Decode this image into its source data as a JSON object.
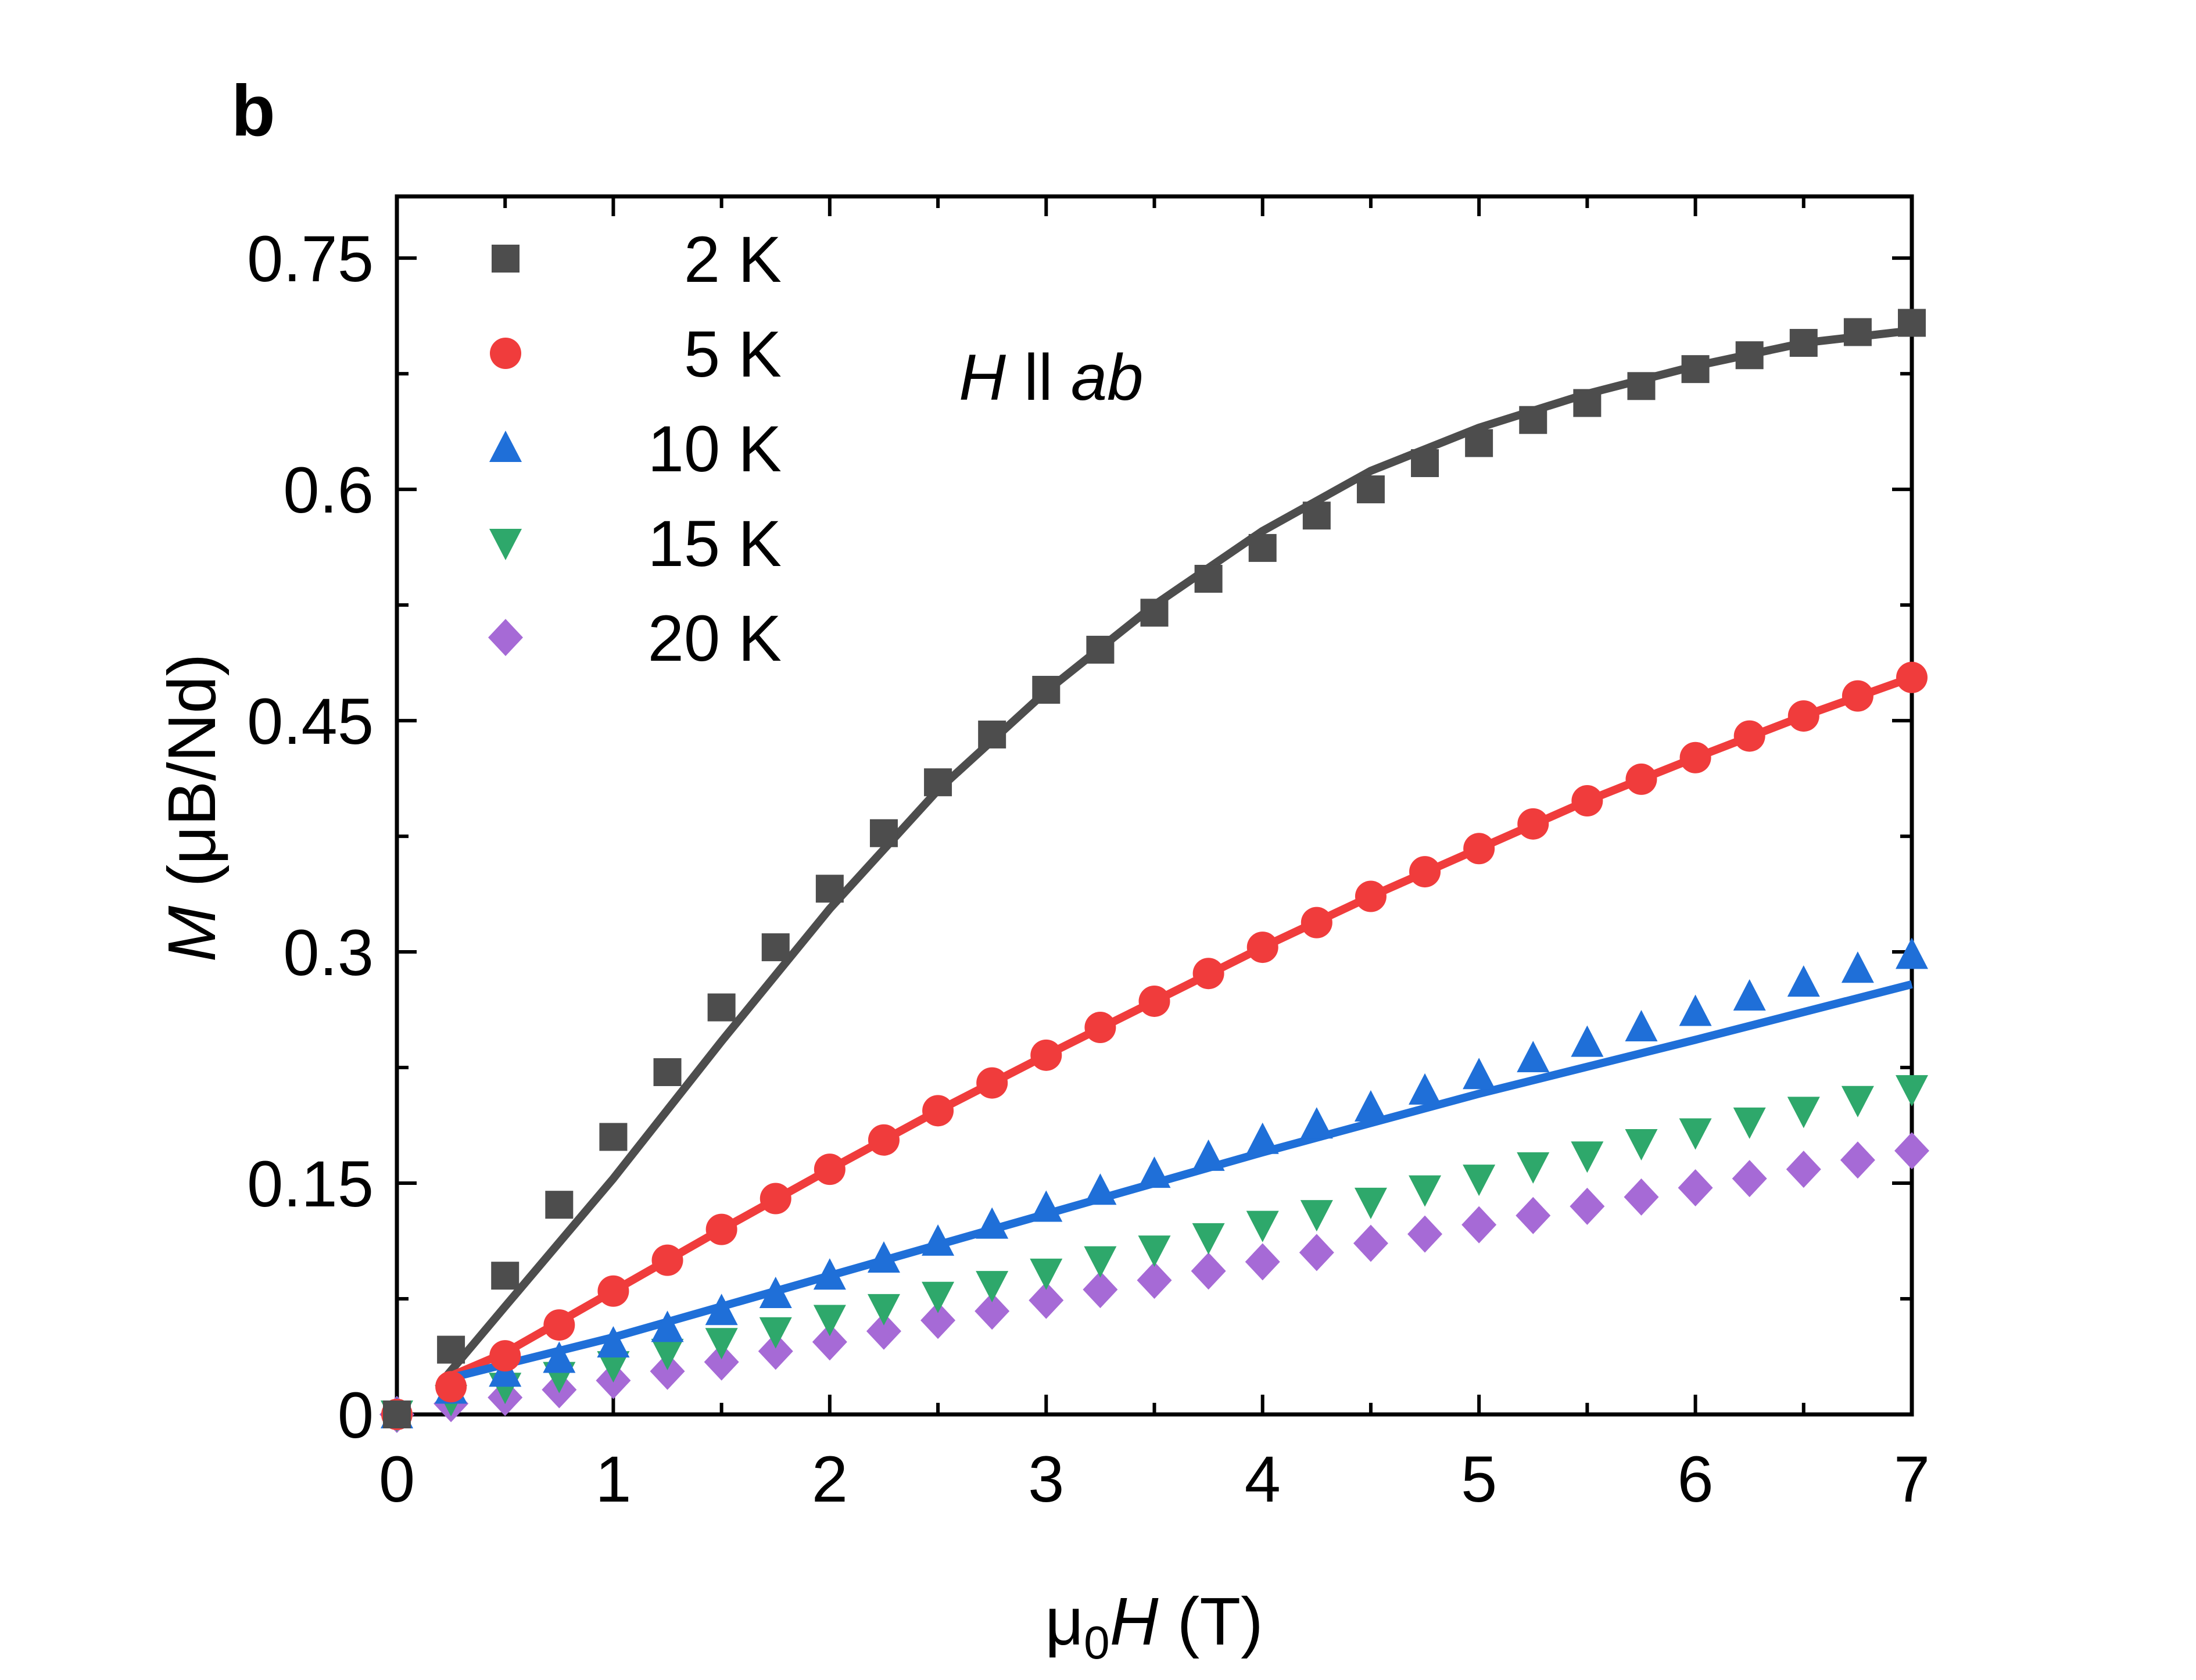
{
  "panel_label": "b",
  "annotation": {
    "prefix": "H",
    "sep": " ll ",
    "suffix": "ab"
  },
  "axes": {
    "x_title": {
      "prefix": "μ",
      "subscript": "0",
      "italic": "H",
      "suffix": " (T)"
    },
    "y_title": {
      "italic": "M",
      "suffix": " (μB/Nd)"
    }
  },
  "chart_data": {
    "type": "scatter",
    "title": "",
    "xlabel": "μ0H (T)",
    "ylabel": "M (μB/Nd)",
    "xlim": [
      0,
      7
    ],
    "ylim": [
      0,
      0.8
    ],
    "xticks": [
      0,
      1,
      2,
      3,
      4,
      5,
      6,
      7
    ],
    "xtick_labels": [
      "0",
      "1",
      "2",
      "3",
      "4",
      "5",
      "6",
      "7"
    ],
    "yticks": [
      0,
      0.15,
      0.3,
      0.45,
      0.6,
      0.75
    ],
    "ytick_labels": [
      "0",
      "0.15",
      "0.3",
      "0.45",
      "0.6",
      "0.75"
    ],
    "legend_position": "top-left",
    "x": [
      0,
      0.25,
      0.5,
      0.75,
      1.0,
      1.25,
      1.5,
      1.75,
      2.0,
      2.25,
      2.5,
      2.75,
      3.0,
      3.25,
      3.5,
      3.75,
      4.0,
      4.25,
      4.5,
      4.75,
      5.0,
      5.25,
      5.5,
      5.75,
      6.0,
      6.25,
      6.5,
      6.75,
      7.0
    ],
    "series": [
      {
        "name": "2 K",
        "marker": "square",
        "color": "#4d4d4d",
        "values": [
          0.0,
          0.042,
          0.09,
          0.136,
          0.18,
          0.222,
          0.264,
          0.303,
          0.341,
          0.377,
          0.41,
          0.441,
          0.47,
          0.496,
          0.52,
          0.542,
          0.562,
          0.583,
          0.6,
          0.617,
          0.63,
          0.645,
          0.656,
          0.667,
          0.678,
          0.687,
          0.695,
          0.702,
          0.708
        ],
        "fit": {
          "color": "#4d4d4d",
          "x": [
            0.2,
            0.5,
            1.0,
            1.5,
            2.0,
            2.5,
            3.0,
            3.5,
            4.0,
            4.5,
            5.0,
            5.5,
            6.0,
            6.5,
            7.0
          ],
          "y": [
            0.02,
            0.07,
            0.153,
            0.242,
            0.328,
            0.405,
            0.469,
            0.525,
            0.573,
            0.612,
            0.64,
            0.662,
            0.68,
            0.695,
            0.703
          ]
        }
      },
      {
        "name": "5 K",
        "marker": "circle",
        "color": "#f03c3c",
        "values": [
          0.0,
          0.018,
          0.038,
          0.058,
          0.08,
          0.1,
          0.12,
          0.14,
          0.159,
          0.178,
          0.197,
          0.215,
          0.233,
          0.251,
          0.268,
          0.286,
          0.303,
          0.319,
          0.336,
          0.352,
          0.367,
          0.383,
          0.398,
          0.412,
          0.426,
          0.44,
          0.453,
          0.466,
          0.478
        ],
        "fit": {
          "color": "#f03c3c",
          "x": [
            0.2,
            0.5,
            1.0,
            1.5,
            2.0,
            2.5,
            3.0,
            3.5,
            4.0,
            4.5,
            5.0,
            5.5,
            6.0,
            6.5,
            7.0
          ],
          "y": [
            0.022,
            0.04,
            0.08,
            0.12,
            0.159,
            0.197,
            0.233,
            0.268,
            0.303,
            0.336,
            0.367,
            0.398,
            0.426,
            0.453,
            0.478
          ]
        }
      },
      {
        "name": "10 K",
        "marker": "triangle-up",
        "color": "#1f6fd8",
        "values": [
          0.0,
          0.016,
          0.027,
          0.036,
          0.046,
          0.056,
          0.067,
          0.078,
          0.09,
          0.101,
          0.112,
          0.123,
          0.134,
          0.145,
          0.156,
          0.167,
          0.178,
          0.188,
          0.199,
          0.21,
          0.22,
          0.231,
          0.241,
          0.251,
          0.261,
          0.271,
          0.28,
          0.289,
          0.298
        ],
        "fit": {
          "color": "#1f6fd8",
          "x": [
            0.2,
            1.0,
            2.0,
            3.0,
            4.0,
            5.0,
            6.0,
            7.0
          ],
          "y": [
            0.022,
            0.05,
            0.09,
            0.13,
            0.17,
            0.208,
            0.243,
            0.279
          ]
        }
      },
      {
        "name": "15 K",
        "marker": "triangle-down",
        "color": "#2ea86b",
        "values": [
          0.0,
          0.01,
          0.018,
          0.025,
          0.032,
          0.04,
          0.047,
          0.054,
          0.062,
          0.069,
          0.077,
          0.084,
          0.092,
          0.1,
          0.107,
          0.115,
          0.123,
          0.13,
          0.138,
          0.146,
          0.153,
          0.161,
          0.168,
          0.176,
          0.183,
          0.19,
          0.197,
          0.204,
          0.211
        ],
        "fit": null
      },
      {
        "name": "20 K",
        "marker": "diamond",
        "color": "#a66ad6",
        "values": [
          0.0,
          0.007,
          0.011,
          0.016,
          0.022,
          0.028,
          0.034,
          0.041,
          0.047,
          0.054,
          0.061,
          0.067,
          0.074,
          0.081,
          0.087,
          0.093,
          0.099,
          0.105,
          0.111,
          0.117,
          0.123,
          0.129,
          0.135,
          0.141,
          0.147,
          0.153,
          0.159,
          0.165,
          0.171
        ],
        "fit": null
      }
    ]
  }
}
